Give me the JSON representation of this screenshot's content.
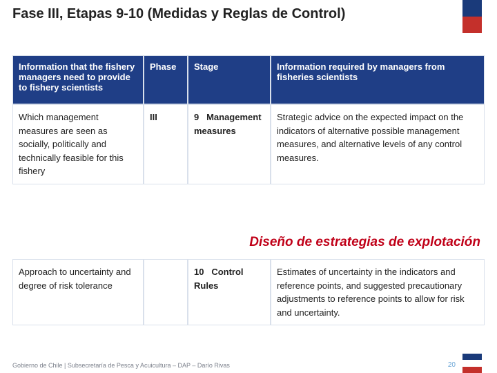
{
  "title": "Fase III, Etapas 9-10 (Medidas y Reglas de Control)",
  "subtitle": "Diseño de estrategias de explotación",
  "footer": "Gobierno de Chile | Subsecretaría de Pesca y Acuicultura – DAP – Darío Rivas",
  "page_number": "20",
  "headers": {
    "c1": "Information that the fishery managers need to provide to fishery scientists",
    "c2": "Phase",
    "c3": "Stage",
    "c4": "Information required by managers from fisheries scientists"
  },
  "row9": {
    "c1": "Which management measures are seen as socially, politically and technically feasible for this fishery",
    "c2": "III",
    "c3num": "9",
    "c3txt": "Management measures",
    "c4": "Strategic advice on the expected impact on the indicators of alternative possible management measures, and alternative levels of any control measures."
  },
  "row10": {
    "c1": "Approach to uncertainty and degree of risk tolerance",
    "c2": "",
    "c3num": "10",
    "c3txt": "Control Rules",
    "c4": "Estimates of uncertainty in the indicators and reference points, and suggested precautionary adjustments to reference points to allow for risk and uncertainty."
  },
  "colors": {
    "header_bg": "#1f3e86",
    "header_text": "#ffffff",
    "border": "#d9e0eb",
    "subtitle": "#c00018",
    "flag_blue": "#1a3a7a",
    "flag_red": "#c4302b"
  }
}
